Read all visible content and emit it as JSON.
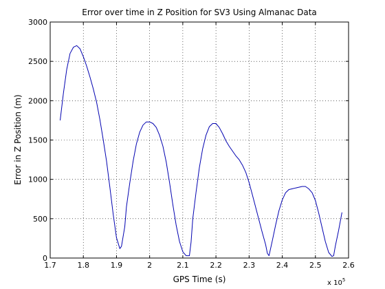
{
  "chart_data": {
    "type": "line",
    "title": "Error over time in Z Position for SV3 Using Almanac Data",
    "xlabel": "GPS Time (s)",
    "ylabel": "Error in Z Position (m)",
    "x_multiplier_label": "x 10",
    "x_multiplier_exponent": "5",
    "xlim": [
      1.7,
      2.6
    ],
    "ylim": [
      0,
      3000
    ],
    "xticks": [
      1.7,
      1.8,
      1.9,
      2.0,
      2.1,
      2.2,
      2.3,
      2.4,
      2.5,
      2.6
    ],
    "xtick_labels": [
      "1.7",
      "1.8",
      "1.9",
      "2",
      "2.1",
      "2.2",
      "2.3",
      "2.4",
      "2.5",
      "2.6"
    ],
    "yticks": [
      0,
      500,
      1000,
      1500,
      2000,
      2500,
      3000
    ],
    "ytick_labels": [
      "0",
      "500",
      "1000",
      "1500",
      "2000",
      "2500",
      "3000"
    ],
    "grid": true,
    "line_color": "#0000b0",
    "series": [
      {
        "x": [
          1.73,
          1.74,
          1.75,
          1.76,
          1.77,
          1.78,
          1.79,
          1.8,
          1.81,
          1.82,
          1.83,
          1.84,
          1.85,
          1.86,
          1.87,
          1.88,
          1.89,
          1.9,
          1.91,
          1.915,
          1.925,
          1.93,
          1.94,
          1.95,
          1.96,
          1.97,
          1.98,
          1.99,
          2.0,
          2.01,
          2.02,
          2.03,
          2.04,
          2.05,
          2.06,
          2.07,
          2.08,
          2.09,
          2.1,
          2.11,
          2.12,
          2.125,
          2.13,
          2.14,
          2.15,
          2.16,
          2.17,
          2.18,
          2.19,
          2.2,
          2.21,
          2.22,
          2.23,
          2.24,
          2.25,
          2.26,
          2.27,
          2.28,
          2.29,
          2.3,
          2.31,
          2.32,
          2.33,
          2.34,
          2.35,
          2.355,
          2.36,
          2.37,
          2.38,
          2.39,
          2.4,
          2.41,
          2.42,
          2.43,
          2.44,
          2.45,
          2.46,
          2.47,
          2.48,
          2.49,
          2.5,
          2.51,
          2.52,
          2.53,
          2.54,
          2.55,
          2.555,
          2.56,
          2.57,
          2.58
        ],
        "y": [
          1750,
          2100,
          2400,
          2600,
          2680,
          2700,
          2660,
          2560,
          2440,
          2300,
          2150,
          1980,
          1760,
          1500,
          1230,
          900,
          560,
          260,
          120,
          150,
          400,
          650,
          950,
          1230,
          1450,
          1600,
          1690,
          1730,
          1730,
          1710,
          1660,
          1560,
          1420,
          1220,
          960,
          680,
          420,
          210,
          80,
          30,
          30,
          200,
          500,
          840,
          1150,
          1390,
          1560,
          1670,
          1710,
          1710,
          1660,
          1580,
          1490,
          1420,
          1360,
          1300,
          1250,
          1180,
          1090,
          960,
          800,
          640,
          480,
          320,
          170,
          60,
          30,
          220,
          420,
          600,
          740,
          830,
          870,
          880,
          890,
          900,
          910,
          910,
          880,
          830,
          730,
          570,
          390,
          210,
          70,
          20,
          30,
          150,
          350,
          580
        ]
      }
    ]
  }
}
